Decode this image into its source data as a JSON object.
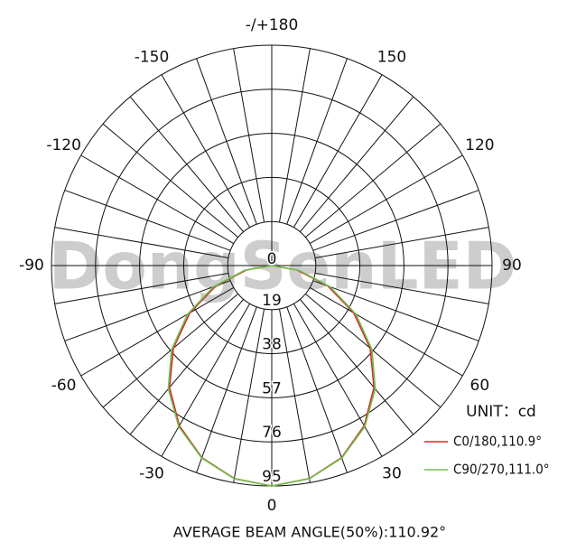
{
  "chart_data": {
    "type": "polar",
    "watermark": "DongSenLED",
    "unit": "UNIT：cd",
    "footer": "AVERAGE BEAM ANGLE(50%):110.92°",
    "angle_ticks": [
      {
        "value": 180,
        "label": "-/+180"
      },
      150,
      120,
      90,
      60,
      30,
      0,
      -30,
      -60,
      -90,
      -120,
      -150
    ],
    "angular_grid_step": 10,
    "rlim": [
      0,
      95
    ],
    "rticks": [
      0,
      19,
      38,
      57,
      76,
      95
    ],
    "angles": [
      -90,
      -80,
      -70,
      -60,
      -50,
      -40,
      -30,
      -20,
      -10,
      0,
      10,
      20,
      30,
      40,
      50,
      60,
      70,
      80,
      90
    ],
    "series": [
      {
        "name": "C0/180,110.9°",
        "color": "#d9262a",
        "values": [
          0,
          11.2,
          25.7,
          40.8,
          55.4,
          68.6,
          79.7,
          88.1,
          93.2,
          95,
          93.2,
          88.1,
          79.7,
          68.6,
          55.4,
          40.8,
          25.7,
          11.2,
          0
        ]
      },
      {
        "name": "C90/270,111.0°",
        "color": "#6cc24a",
        "values": [
          0,
          12.0,
          26.8,
          41.9,
          56.4,
          69.4,
          80.2,
          88.3,
          93.3,
          95,
          93.3,
          88.3,
          80.2,
          69.4,
          56.4,
          41.9,
          26.8,
          12.0,
          0
        ]
      }
    ]
  }
}
